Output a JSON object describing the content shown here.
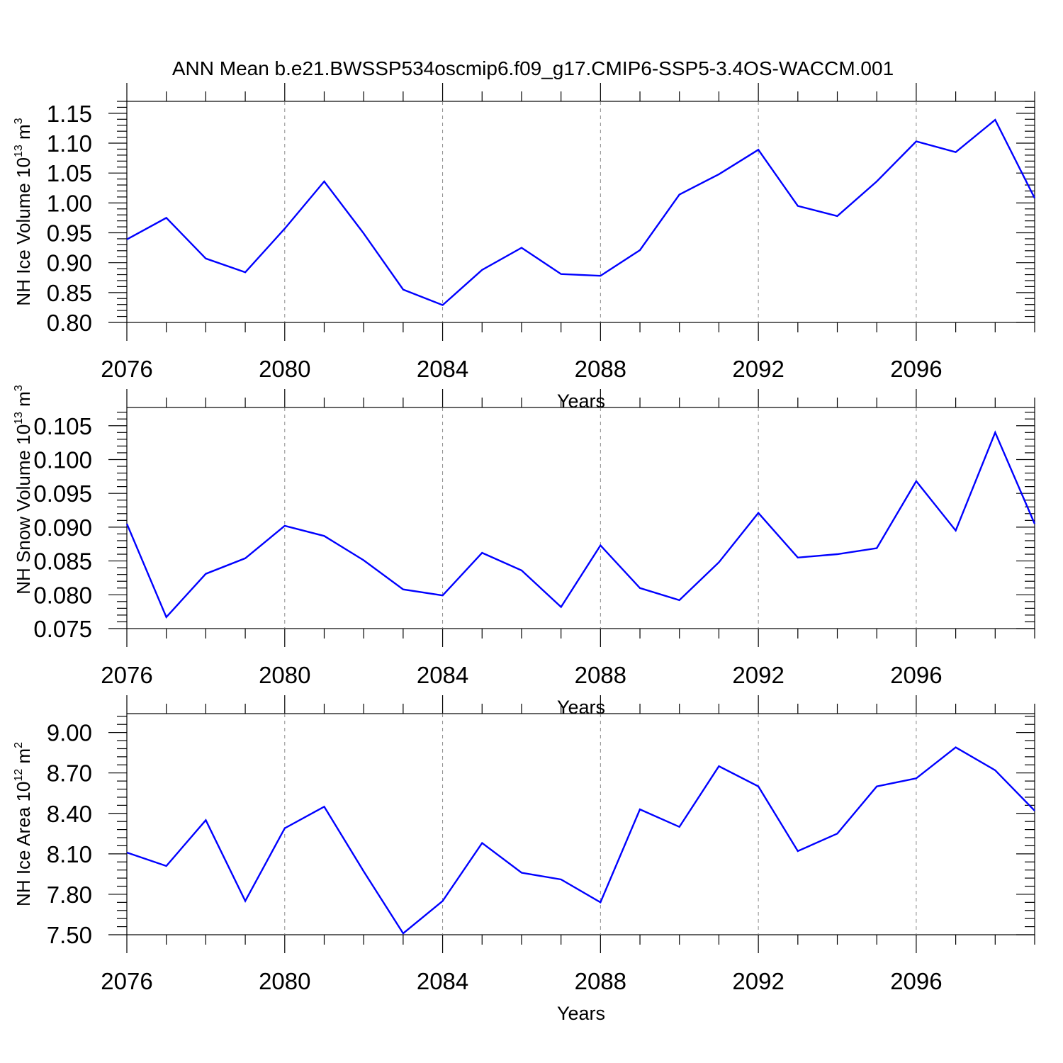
{
  "title": "ANN Mean b.e21.BWSSP534oscmip6.f09_g17.CMIP6-SSP5-3.4OS-WACCM.001",
  "line_color": "#0000FF",
  "chart_data": [
    {
      "type": "line",
      "ylabel": {
        "main": "NH Ice Volume 10",
        "exp": "13",
        "unit": " m",
        "unit_exp": "3"
      },
      "xlabel": "Years",
      "xlim": [
        2076,
        2099
      ],
      "ylim": [
        0.8,
        1.17
      ],
      "yticks": [
        "0.80",
        "0.85",
        "0.90",
        "0.95",
        "1.00",
        "1.05",
        "1.10",
        "1.15"
      ],
      "xticks": [
        "2076",
        "2080",
        "2084",
        "2088",
        "2092",
        "2096"
      ],
      "x": [
        2076,
        2077,
        2078,
        2079,
        2080,
        2081,
        2082,
        2083,
        2084,
        2085,
        2086,
        2087,
        2088,
        2089,
        2090,
        2091,
        2092,
        2093,
        2094,
        2095,
        2096,
        2097,
        2098,
        2099
      ],
      "y": [
        0.939,
        0.975,
        0.907,
        0.884,
        0.957,
        1.036,
        0.949,
        0.855,
        0.829,
        0.888,
        0.925,
        0.881,
        0.878,
        0.921,
        1.014,
        1.048,
        1.089,
        0.995,
        0.978,
        1.036,
        1.103,
        1.085,
        1.139,
        1.008
      ]
    },
    {
      "type": "line",
      "ylabel": {
        "main": "NH Snow Volume 10",
        "exp": "13",
        "unit": " m",
        "unit_exp": "3"
      },
      "xlabel": "Years",
      "xlim": [
        2076,
        2099
      ],
      "ylim": [
        0.075,
        0.1077
      ],
      "yticks": [
        "0.075",
        "0.080",
        "0.085",
        "0.090",
        "0.095",
        "0.100",
        "0.105"
      ],
      "xticks": [
        "2076",
        "2080",
        "2084",
        "2088",
        "2092",
        "2096"
      ],
      "x": [
        2076,
        2077,
        2078,
        2079,
        2080,
        2081,
        2082,
        2083,
        2084,
        2085,
        2086,
        2087,
        2088,
        2089,
        2090,
        2091,
        2092,
        2093,
        2094,
        2095,
        2096,
        2097,
        2098,
        2099
      ],
      "y": [
        0.0905,
        0.0767,
        0.0831,
        0.0854,
        0.0902,
        0.0887,
        0.0851,
        0.0808,
        0.0799,
        0.0862,
        0.0836,
        0.0782,
        0.0873,
        0.081,
        0.0792,
        0.0848,
        0.0921,
        0.0855,
        0.086,
        0.0869,
        0.0968,
        0.0895,
        0.104,
        0.0905
      ]
    },
    {
      "type": "line",
      "ylabel": {
        "main": "NH Ice Area 10",
        "exp": "12",
        "unit": " m",
        "unit_exp": "2"
      },
      "xlabel": "Years",
      "xlim": [
        2076,
        2099
      ],
      "ylim": [
        7.5,
        9.14
      ],
      "yticks": [
        "7.50",
        "7.80",
        "8.10",
        "8.40",
        "8.70",
        "9.00"
      ],
      "xticks": [
        "2076",
        "2080",
        "2084",
        "2088",
        "2092",
        "2096"
      ],
      "x": [
        2076,
        2077,
        2078,
        2079,
        2080,
        2081,
        2082,
        2083,
        2084,
        2085,
        2086,
        2087,
        2088,
        2089,
        2090,
        2091,
        2092,
        2093,
        2094,
        2095,
        2096,
        2097,
        2098,
        2099
      ],
      "y": [
        8.11,
        8.01,
        8.35,
        7.75,
        8.29,
        8.45,
        7.97,
        7.51,
        7.75,
        8.18,
        7.96,
        7.91,
        7.74,
        8.43,
        8.3,
        8.75,
        8.6,
        8.12,
        8.25,
        8.6,
        8.66,
        8.89,
        8.72,
        8.42
      ]
    }
  ]
}
